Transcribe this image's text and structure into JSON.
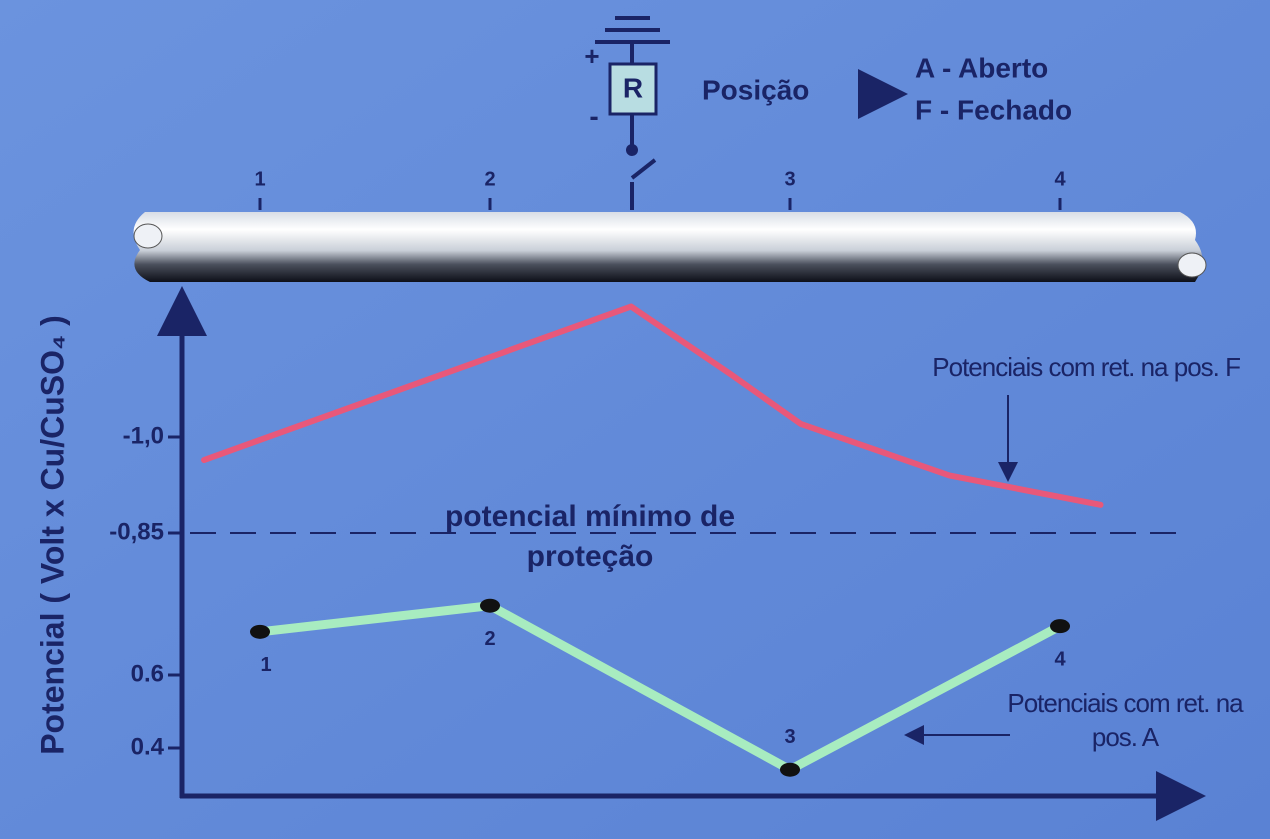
{
  "chart_data": {
    "type": "line",
    "y_label": "Potencial ( Volt x Cu/CuSO₄ )",
    "switch_label": "R",
    "plus": "+",
    "minus": "-",
    "position_title": "Posição",
    "position_options": [
      "A - Aberto",
      "F - Fechado"
    ],
    "xlim": [
      0.7,
      4.5
    ],
    "xticks": [
      1,
      2,
      3,
      4
    ],
    "ylim": [
      0.27,
      1.21
    ],
    "yticks": [
      0.4,
      0.6,
      {
        "value": 0.85,
        "label": "-0,85"
      },
      {
        "value": 1,
        "label": "-1,0"
      }
    ],
    "min_protection": {
      "value": 0.85,
      "label": "potencial mínimo de proteção"
    },
    "series": [
      {
        "name": "Potenciais com ret. na pos. F",
        "color": "#e8587a",
        "x": [
          0.76,
          2.47,
          2.8,
          3.04,
          3.59,
          4.15
        ],
        "values": [
          0.964,
          1.2,
          1.097,
          1.02,
          0.94,
          0.894
        ]
      },
      {
        "name": "Potenciais com ret. na pos. A",
        "color": "#a8ecc0",
        "x": [
          1,
          2,
          3,
          4
        ],
        "values": [
          0.676,
          0.722,
          0.34,
          0.686
        ],
        "point_labels": [
          "1",
          "2",
          "3",
          "4"
        ]
      }
    ]
  }
}
